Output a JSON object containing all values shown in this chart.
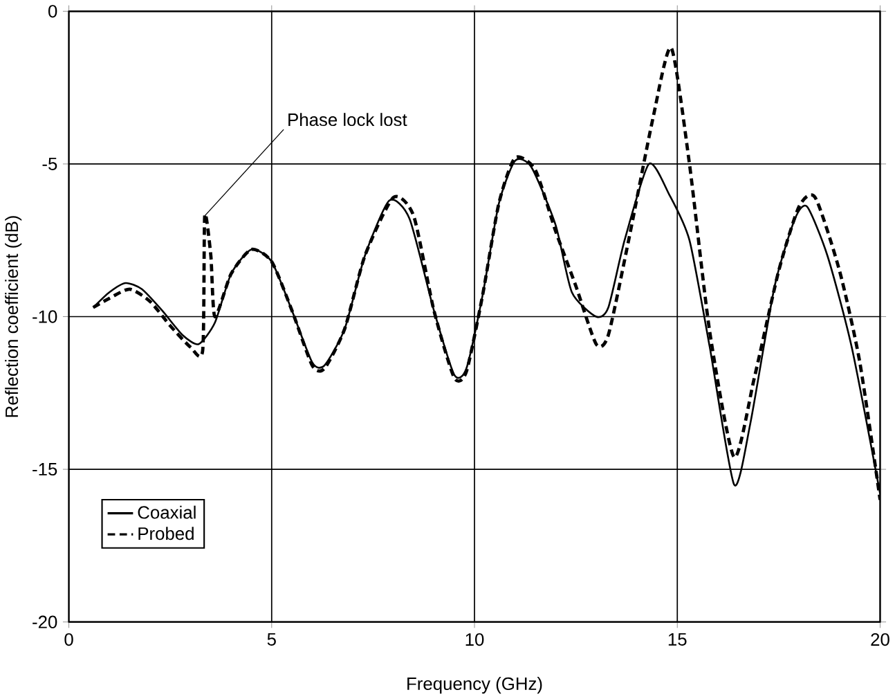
{
  "chart_data": {
    "type": "line",
    "xlabel": "Frequency (GHz)",
    "ylabel": "Reflection coefficient (dB)",
    "xlim": [
      0,
      20
    ],
    "ylim": [
      -20,
      0
    ],
    "xticks": [
      0,
      5,
      10,
      15,
      20
    ],
    "yticks": [
      -20,
      -15,
      -10,
      -5,
      0
    ],
    "grid": true,
    "legend": "bottom left",
    "marker": "none",
    "annotations": [
      {
        "text": "Phase lock lost",
        "x": 3.35,
        "y": -6.7
      }
    ],
    "series": [
      {
        "name": "Coaxial",
        "color": "#000000",
        "line_style": "solid",
        "x": [
          0.6,
          1.0,
          1.4,
          1.8,
          2.3,
          2.8,
          3.2,
          3.6,
          4.0,
          4.5,
          5.0,
          5.5,
          6.0,
          6.3,
          6.8,
          7.3,
          7.9,
          8.4,
          9.0,
          9.5,
          9.8,
          10.2,
          10.6,
          11.0,
          11.4,
          12.0,
          12.4,
          13.0,
          13.3,
          13.7,
          14.3,
          14.8,
          15.3,
          15.8,
          16.4,
          16.8,
          17.4,
          17.9,
          18.2,
          18.7,
          19.3,
          20.0
        ],
        "values": [
          -9.7,
          -9.2,
          -8.9,
          -9.1,
          -9.8,
          -10.6,
          -10.9,
          -10.2,
          -8.6,
          -7.8,
          -8.2,
          -9.8,
          -11.5,
          -11.6,
          -10.4,
          -8.0,
          -6.2,
          -6.8,
          -9.8,
          -11.9,
          -11.7,
          -9.3,
          -6.3,
          -4.9,
          -5.1,
          -7.0,
          -9.2,
          -10.0,
          -9.7,
          -7.5,
          -5.0,
          -6.0,
          -7.5,
          -11.0,
          -15.5,
          -13.5,
          -9.0,
          -6.8,
          -6.4,
          -8.0,
          -11.0,
          -15.8
        ]
      },
      {
        "name": "Probed",
        "color": "#000000",
        "line_style": "dashed",
        "x": [
          0.6,
          1.0,
          1.5,
          2.0,
          2.5,
          3.0,
          3.3,
          3.35,
          3.5,
          3.6,
          4.0,
          4.5,
          5.0,
          5.5,
          6.0,
          6.3,
          6.8,
          7.3,
          8.0,
          8.5,
          9.0,
          9.5,
          9.8,
          10.2,
          10.6,
          11.0,
          11.5,
          12.0,
          12.5,
          13.0,
          13.3,
          13.8,
          14.4,
          14.85,
          15.3,
          15.8,
          16.4,
          16.9,
          17.5,
          18.0,
          18.4,
          19.0,
          19.5,
          20.0
        ],
        "values": [
          -9.7,
          -9.4,
          -9.1,
          -9.5,
          -10.3,
          -11.0,
          -11.1,
          -6.7,
          -8.0,
          -10.0,
          -8.6,
          -7.8,
          -8.2,
          -9.8,
          -11.6,
          -11.7,
          -10.4,
          -8.0,
          -6.1,
          -6.7,
          -9.8,
          -12.0,
          -11.8,
          -9.3,
          -6.3,
          -4.8,
          -5.2,
          -7.2,
          -9.0,
          -10.9,
          -10.6,
          -7.5,
          -3.5,
          -1.2,
          -5.0,
          -10.5,
          -14.6,
          -12.0,
          -8.5,
          -6.4,
          -6.1,
          -8.5,
          -11.5,
          -16.0
        ]
      }
    ]
  }
}
